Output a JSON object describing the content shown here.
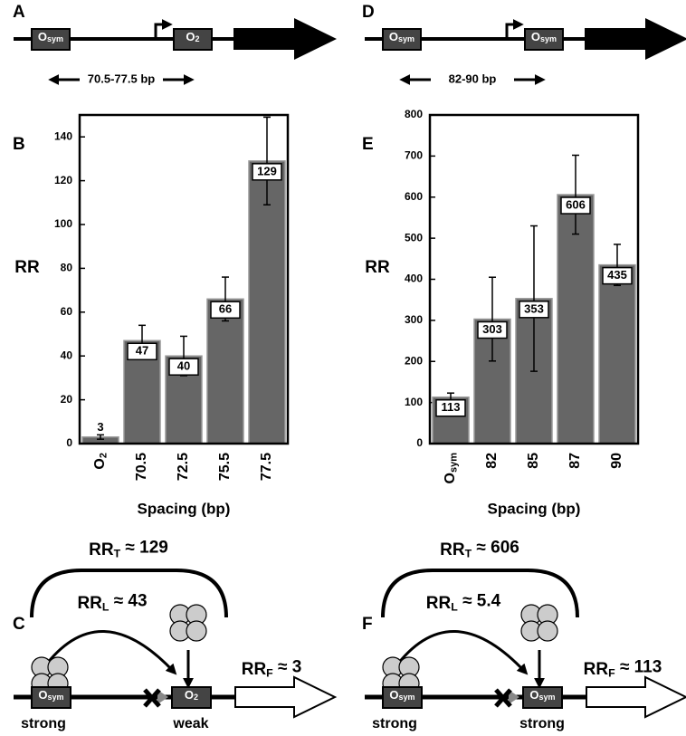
{
  "panel_labels": [
    "A",
    "B",
    "C",
    "D",
    "E",
    "F"
  ],
  "chart_data": [
    {
      "type": "bar",
      "ylabel": "RR",
      "xlabel": "Spacing (bp)",
      "categories": [
        "O2",
        "70.5",
        "72.5",
        "75.5",
        "77.5"
      ],
      "values": [
        3,
        47,
        40,
        66,
        129
      ],
      "errors": [
        1,
        7,
        9,
        10,
        20
      ],
      "ylim": [
        0,
        150
      ],
      "yticks": [
        0,
        20,
        40,
        60,
        80,
        100,
        120,
        140
      ],
      "color": "#666666"
    },
    {
      "type": "bar",
      "ylabel": "RR",
      "xlabel": "Spacing (bp)",
      "categories": [
        "Osym",
        "82",
        "85",
        "87",
        "90"
      ],
      "values": [
        113,
        303,
        353,
        606,
        435
      ],
      "errors": [
        10,
        102,
        177,
        96,
        50
      ],
      "ylim": [
        0,
        800
      ],
      "yticks": [
        0,
        100,
        200,
        300,
        400,
        500,
        600,
        700,
        800
      ],
      "color": "#666666"
    }
  ],
  "maps": [
    {
      "left_operator": "Osym",
      "right_operator": "O2",
      "spacing": "70.5-77.5 bp"
    },
    {
      "left_operator": "Osym",
      "right_operator": "Osym",
      "spacing": "82-90 bp"
    }
  ],
  "schemes": [
    {
      "total": {
        "base": "RR",
        "sub": "T",
        "text": " ≈ 129"
      },
      "loop": {
        "base": "RR",
        "sub": "L",
        "text": " ≈ 43"
      },
      "free": {
        "base": "RR",
        "sub": "F",
        "text": " ≈ 3"
      },
      "left_operator": "Osym",
      "right_operator": "O2",
      "left_strength": "strong",
      "right_strength": "weak"
    },
    {
      "total": {
        "base": "RR",
        "sub": "T",
        "text": " ≈ 606"
      },
      "loop": {
        "base": "RR",
        "sub": "L",
        "text": " ≈ 5.4"
      },
      "free": {
        "base": "RR",
        "sub": "F",
        "text": " ≈ 113"
      },
      "left_operator": "Osym",
      "right_operator": "Osym",
      "left_strength": "strong",
      "right_strength": "strong"
    }
  ]
}
